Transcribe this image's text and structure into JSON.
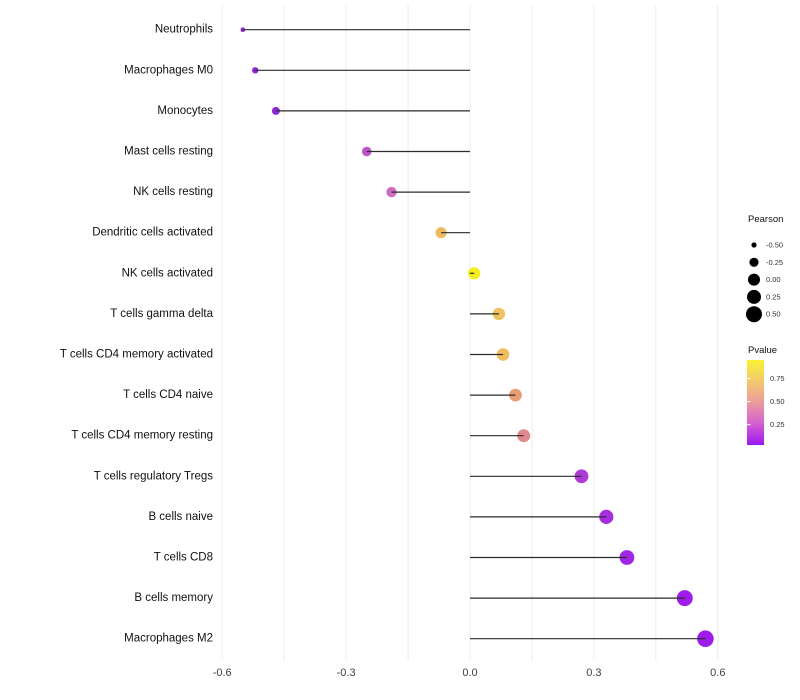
{
  "chart_data": {
    "type": "lollipop",
    "title": "",
    "xlabel": "",
    "ylabel": "",
    "xlim": [
      -0.63,
      0.65
    ],
    "grid": "vertical-only",
    "gridline_values": [
      -0.6,
      -0.45,
      -0.3,
      -0.15,
      0,
      0.15,
      0.3,
      0.45,
      0.6
    ],
    "x_ticks": [
      {
        "value": -0.6,
        "label": "-0.6"
      },
      {
        "value": -0.3,
        "label": "-0.3"
      },
      {
        "value": 0.0,
        "label": "0.0"
      },
      {
        "value": 0.3,
        "label": "0.3"
      },
      {
        "value": 0.6,
        "label": "0.6"
      }
    ],
    "series_note": "Pearson correlation per immune cell type; dot size = Pearson, dot color = Pvalue",
    "rows": [
      {
        "label": "Neutrophils",
        "pearson": -0.55,
        "dot_color": "#8b24d8",
        "r": 2.3
      },
      {
        "label": "Macrophages M0",
        "pearson": -0.52,
        "dot_color": "#8c26d9",
        "r": 3.2
      },
      {
        "label": "Monocytes",
        "pearson": -0.47,
        "dot_color": "#8f2ada",
        "r": 4.0
      },
      {
        "label": "Mast cells resting",
        "pearson": -0.25,
        "dot_color": "#bf52cb",
        "r": 4.8
      },
      {
        "label": "NK cells resting",
        "pearson": -0.19,
        "dot_color": "#cd6cc3",
        "r": 5.2
      },
      {
        "label": "Dendritic cells activated",
        "pearson": -0.07,
        "dot_color": "#eebc5f",
        "r": 5.6
      },
      {
        "label": "NK cells activated",
        "pearson": 0.01,
        "dot_color": "#f3ef1b",
        "r": 6.1
      },
      {
        "label": "T cells gamma delta",
        "pearson": 0.07,
        "dot_color": "#eec161",
        "r": 6.2
      },
      {
        "label": "T cells CD4 memory activated",
        "pearson": 0.08,
        "dot_color": "#f0bd5e",
        "r": 6.3
      },
      {
        "label": "T cells CD4 naive",
        "pearson": 0.11,
        "dot_color": "#e99d74",
        "r": 6.4
      },
      {
        "label": "T cells CD4 memory resting",
        "pearson": 0.13,
        "dot_color": "#e0888d",
        "r": 6.5
      },
      {
        "label": "T cells regulatory  Tregs",
        "pearson": 0.27,
        "dot_color": "#ae3ad4",
        "r": 6.9
      },
      {
        "label": "B cells naive",
        "pearson": 0.33,
        "dot_color": "#a52ee0",
        "r": 7.1
      },
      {
        "label": "T cells CD8",
        "pearson": 0.38,
        "dot_color": "#a227e4",
        "r": 7.4
      },
      {
        "label": "B cells memory",
        "pearson": 0.52,
        "dot_color": "#9e1dea",
        "r": 8.0
      },
      {
        "label": "Macrophages M2",
        "pearson": 0.57,
        "dot_color": "#9e1cea",
        "r": 8.3
      }
    ],
    "legend_pearson": {
      "title": "Pearson",
      "items": [
        {
          "label": "-0.50",
          "r": 2.6
        },
        {
          "label": "-0.25",
          "r": 4.6
        },
        {
          "label": "0.00",
          "r": 6.0
        },
        {
          "label": "0.25",
          "r": 7.0
        },
        {
          "label": "0.50",
          "r": 8.0
        }
      ],
      "dot_color": "#000000"
    },
    "legend_pvalue": {
      "title": "Pvalue",
      "ticks": [
        {
          "label": "0.75",
          "value": 0.75
        },
        {
          "label": "0.50",
          "value": 0.5
        },
        {
          "label": "0.25",
          "value": 0.25
        }
      ],
      "bar_range_top": 0.95,
      "bar_range_bottom": 0.03,
      "gradient_top_to_bottom": [
        "#f7f234",
        "#f3c96e",
        "#eb9b9c",
        "#d55fd0",
        "#9c17ef"
      ]
    },
    "colors": {
      "gridline": "#ececec",
      "stem": "#2b2b2b",
      "axis_text": "#404040",
      "row_label_text": "#111111",
      "background": "#ffffff"
    }
  }
}
